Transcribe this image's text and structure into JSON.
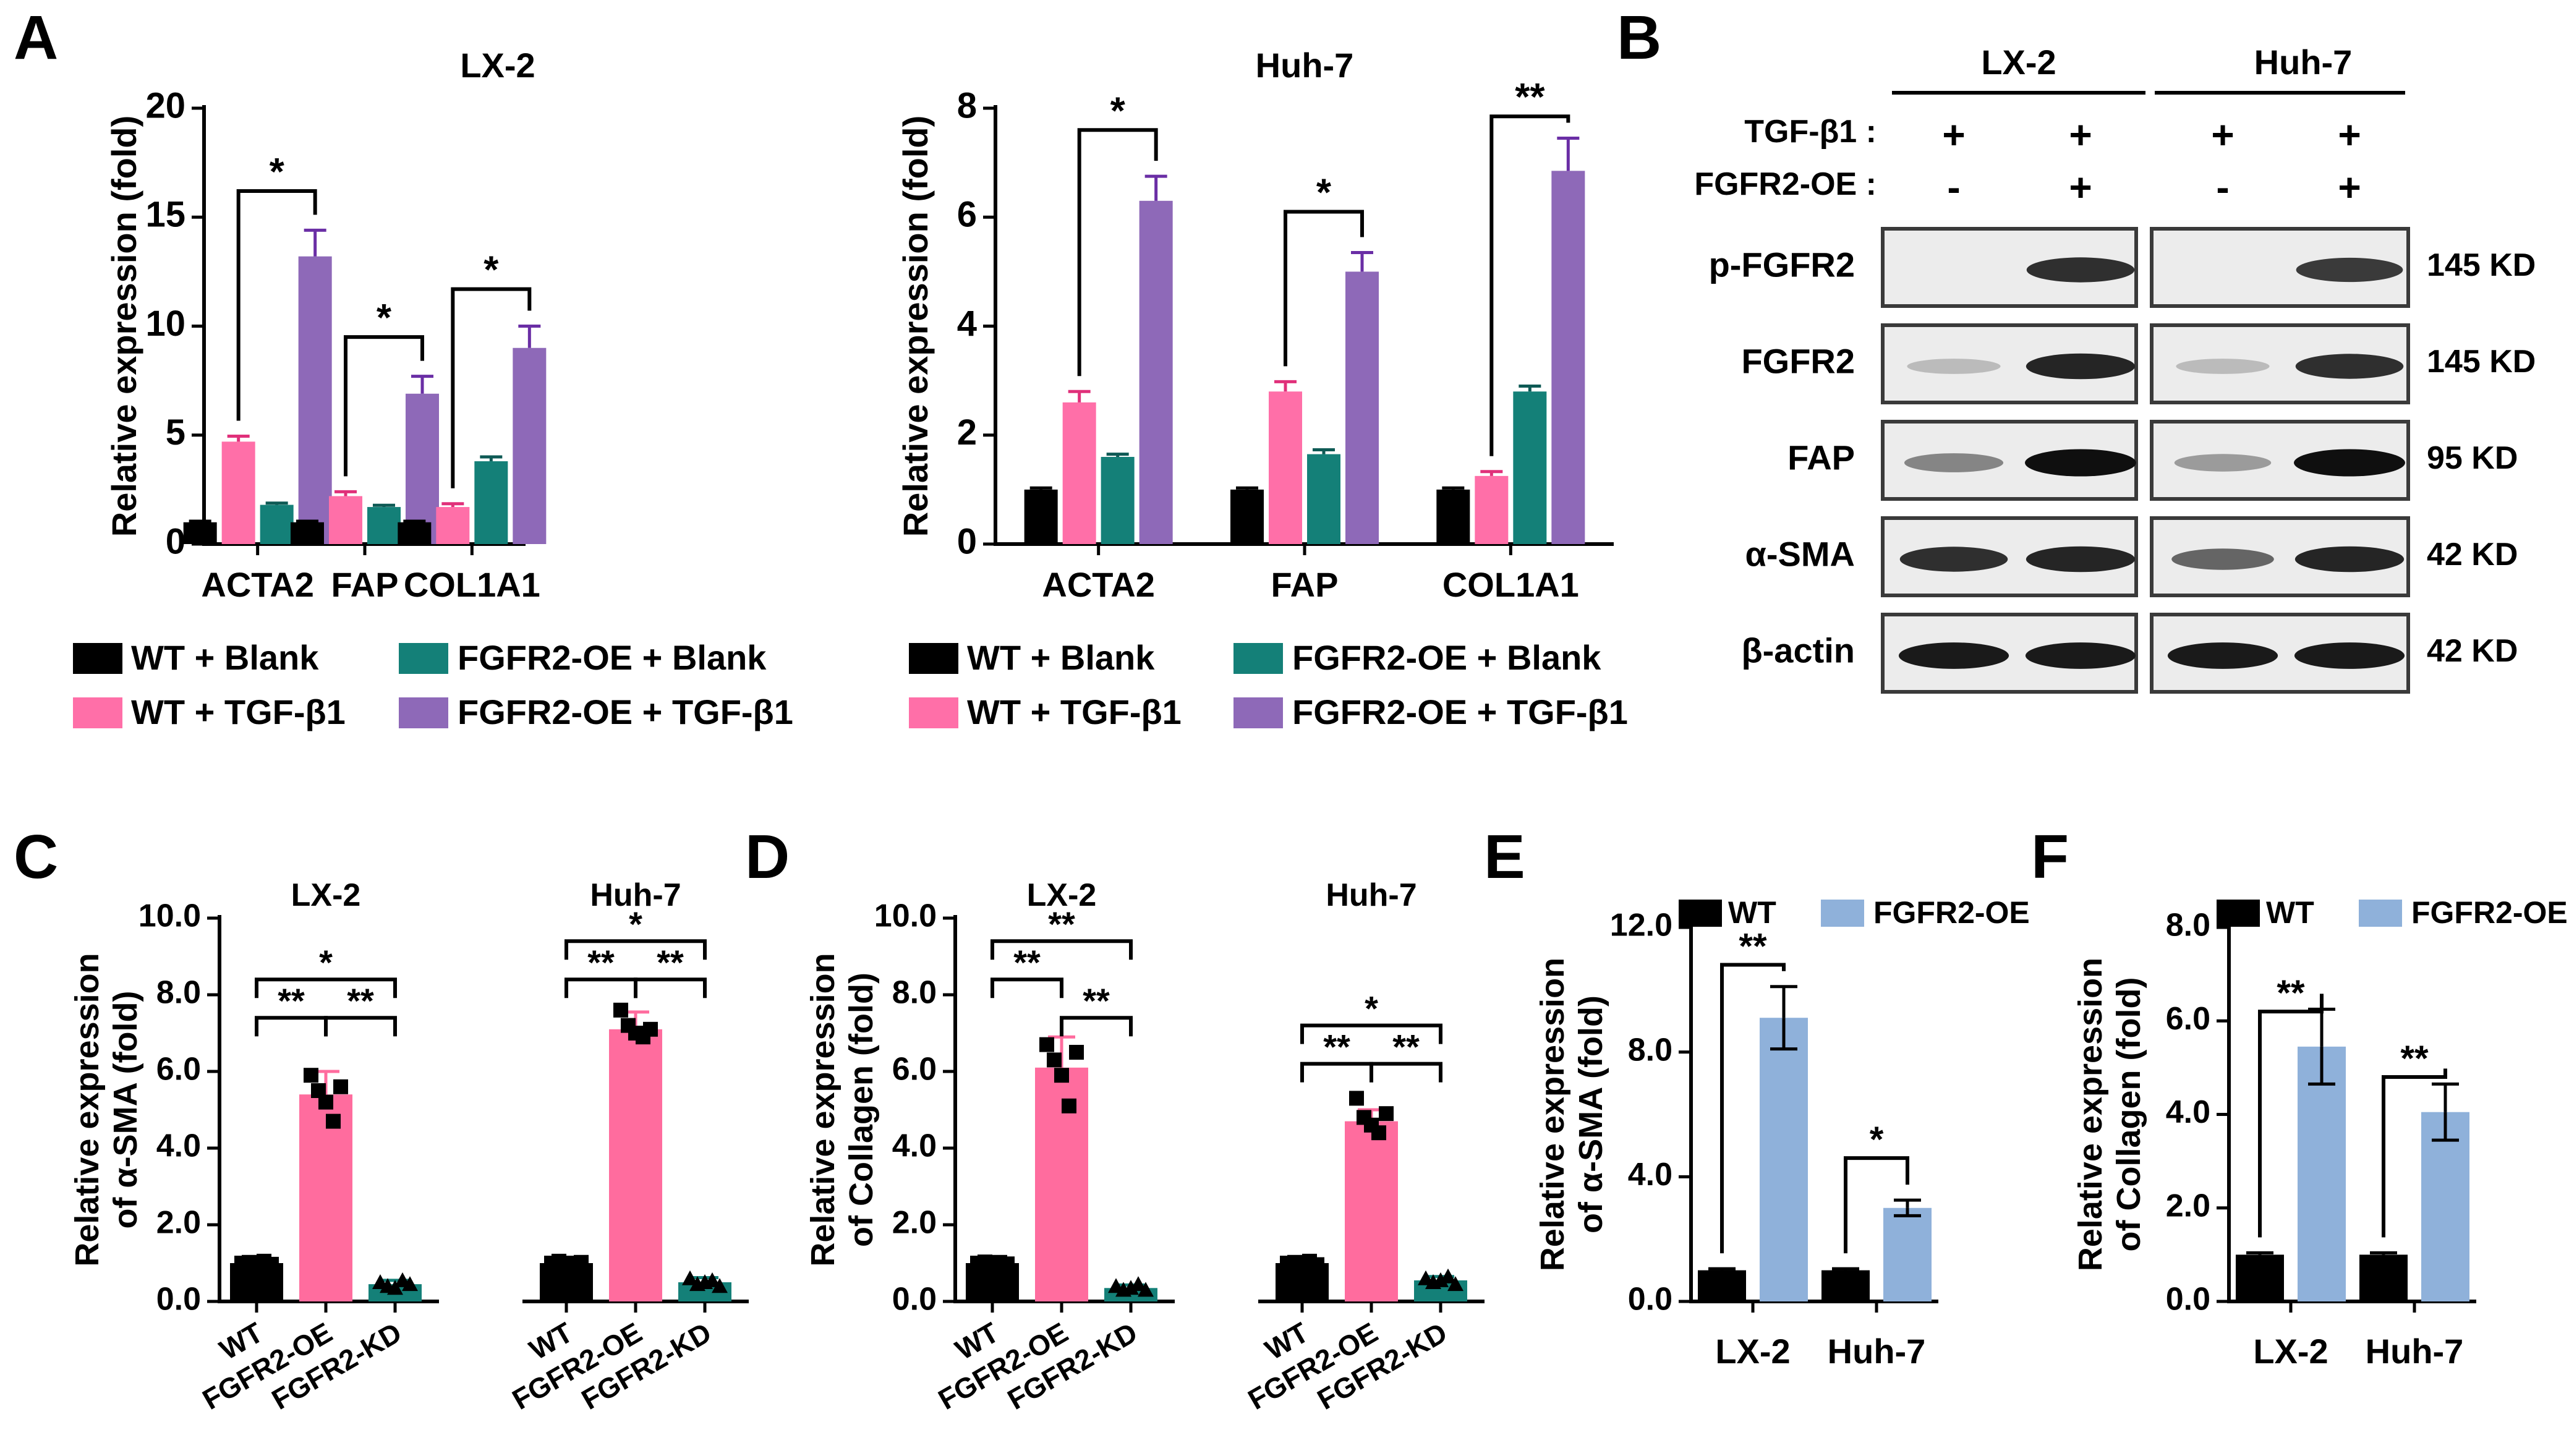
{
  "panel_labels": [
    "A",
    "B",
    "C",
    "D",
    "E",
    "F"
  ],
  "colors": {
    "wt_blank": "#000000",
    "oe_blank": "#148078",
    "wt_tgf": "#ff6fa8",
    "oe_tgf": "#8e69b8",
    "e_wt": "#000000",
    "e_oe": "#8fb1da",
    "c_oe": "#ff6c9e",
    "c_kd": "#148078",
    "err_default": "#000000"
  },
  "panelA": {
    "legend": {
      "wt_blank": "WT + Blank",
      "oe_blank": "FGFR2-OE + Blank",
      "wt_tgf": "WT + TGF-β1",
      "oe_tgf": "FGFR2-OE + TGF-β1"
    }
  },
  "panelB": {
    "cell_lines": [
      "LX-2",
      "Huh-7"
    ],
    "treatments": [
      {
        "label": "TGF-β1 :",
        "signs": [
          "+",
          "+",
          "+",
          "+"
        ]
      },
      {
        "label": "FGFR2-OE :",
        "signs": [
          "-",
          "+",
          "-",
          "+"
        ]
      }
    ],
    "rows": [
      {
        "label": "p-FGFR2",
        "size": "145 KD",
        "bands": [
          0,
          0.85,
          0,
          0.8
        ]
      },
      {
        "label": "FGFR2",
        "size": "145 KD",
        "bands": [
          0.2,
          0.9,
          0.2,
          0.85
        ]
      },
      {
        "label": "FAP",
        "size": "95 KD",
        "bands": [
          0.45,
          1.0,
          0.35,
          1.0
        ]
      },
      {
        "label": "α-SMA",
        "size": "42 KD",
        "bands": [
          0.85,
          0.9,
          0.6,
          0.9
        ]
      },
      {
        "label": "β-actin",
        "size": "42 KD",
        "bands": [
          0.95,
          0.95,
          0.95,
          0.95
        ]
      }
    ]
  },
  "chart_data": [
    {
      "id": "A-LX2",
      "type": "bar",
      "title": "LX-2",
      "ylabel": "Relative expression (fold)",
      "ylim": [
        0,
        20
      ],
      "yticks": [
        0,
        5,
        10,
        15,
        20
      ],
      "categories": [
        "ACTA2",
        "FAP",
        "COL1A1"
      ],
      "series": [
        {
          "name": "WT + Blank",
          "color": "#000000",
          "err_color": "#000000",
          "values": [
            1.0,
            1.0,
            1.0
          ],
          "errors": [
            0.05,
            0.05,
            0.05
          ]
        },
        {
          "name": "WT + TGF-β1",
          "color": "#ff6fa8",
          "err_color": "#e0307a",
          "values": [
            4.7,
            2.2,
            1.7
          ],
          "errors": [
            0.25,
            0.2,
            0.15
          ]
        },
        {
          "name": "FGFR2-OE + Blank",
          "color": "#148078",
          "err_color": "#0e5a55",
          "values": [
            1.8,
            1.7,
            3.8
          ],
          "errors": [
            0.08,
            0.08,
            0.2
          ]
        },
        {
          "name": "FGFR2-OE + TGF-β1",
          "color": "#8e69b8",
          "err_color": "#6a2ea5",
          "values": [
            13.2,
            6.9,
            9.0
          ],
          "errors": [
            1.2,
            0.8,
            1.0
          ]
        }
      ],
      "significance": [
        {
          "a": [
            0,
            1
          ],
          "b": [
            0,
            3
          ],
          "label": "*",
          "y": 16.2
        },
        {
          "a": [
            1,
            1
          ],
          "b": [
            1,
            3
          ],
          "label": "*",
          "y": 9.5
        },
        {
          "a": [
            2,
            1
          ],
          "b": [
            2,
            3
          ],
          "label": "*",
          "y": 11.7
        }
      ]
    },
    {
      "id": "A-Huh7",
      "type": "bar",
      "title": "Huh-7",
      "ylabel": "Relative expression (fold)",
      "ylim": [
        0,
        8
      ],
      "yticks": [
        0,
        2,
        4,
        6,
        8
      ],
      "categories": [
        "ACTA2",
        "FAP",
        "COL1A1"
      ],
      "series": [
        {
          "name": "WT + Blank",
          "color": "#000000",
          "err_color": "#000000",
          "values": [
            1.0,
            1.0,
            1.0
          ],
          "errors": [
            0.03,
            0.03,
            0.03
          ]
        },
        {
          "name": "WT + TGF-β1",
          "color": "#ff6fa8",
          "err_color": "#e0307a",
          "values": [
            2.6,
            2.8,
            1.25
          ],
          "errors": [
            0.2,
            0.18,
            0.08
          ]
        },
        {
          "name": "FGFR2-OE + Blank",
          "color": "#148078",
          "err_color": "#0e5a55",
          "values": [
            1.6,
            1.65,
            2.8
          ],
          "errors": [
            0.05,
            0.08,
            0.1
          ]
        },
        {
          "name": "FGFR2-OE + TGF-β1",
          "color": "#8e69b8",
          "err_color": "#6a2ea5",
          "values": [
            6.3,
            5.0,
            6.85
          ],
          "errors": [
            0.45,
            0.35,
            0.6
          ]
        }
      ],
      "significance": [
        {
          "a": [
            0,
            1
          ],
          "b": [
            0,
            3
          ],
          "label": "*",
          "y": 7.6
        },
        {
          "a": [
            1,
            1
          ],
          "b": [
            1,
            3
          ],
          "label": "*",
          "y": 6.1
        },
        {
          "a": [
            2,
            1
          ],
          "b": [
            2,
            3
          ],
          "label": "**",
          "y": 7.85
        }
      ]
    },
    {
      "id": "C",
      "type": "bar",
      "title": "",
      "group_titles": [
        "LX-2",
        "Huh-7"
      ],
      "ylabel": [
        "Relative expression",
        "of α-SMA (fold)"
      ],
      "ylim": [
        0,
        10
      ],
      "yticks": [
        "0.0",
        "2.0",
        "4.0",
        "6.0",
        "8.0",
        "10.0"
      ],
      "ytick_values": [
        0,
        2,
        4,
        6,
        8,
        10
      ],
      "categories": [
        "WT",
        "FGFR2-OE",
        "FGFR2-KD",
        "WT",
        "FGFR2-OE",
        "FGFR2-KD"
      ],
      "values": [
        1.0,
        5.4,
        0.45,
        1.0,
        7.1,
        0.5
      ],
      "errors": [
        0.05,
        0.6,
        0.1,
        0.05,
        0.45,
        0.12
      ],
      "bar_colors": [
        "#000000",
        "#ff6c9e",
        "#148078",
        "#000000",
        "#ff6c9e",
        "#148078"
      ],
      "points": [
        [
          1.0,
          1.02,
          0.98,
          1.05,
          0.97
        ],
        [
          5.9,
          5.5,
          5.2,
          4.7,
          5.6
        ],
        [
          0.5,
          0.4,
          0.35,
          0.55,
          0.45
        ],
        [
          1.0,
          1.05,
          0.95,
          1.0,
          1.02
        ],
        [
          7.6,
          7.2,
          7.0,
          6.9,
          7.1
        ],
        [
          0.6,
          0.45,
          0.5,
          0.55,
          0.4
        ]
      ],
      "significance": [
        {
          "a": 0,
          "b": 1,
          "label": "**",
          "y": 7.4
        },
        {
          "a": 1,
          "b": 2,
          "label": "**",
          "y": 7.4
        },
        {
          "a": 0,
          "b": 2,
          "label": "*",
          "y": 8.4
        },
        {
          "a": 3,
          "b": 4,
          "label": "**",
          "y": 8.4
        },
        {
          "a": 4,
          "b": 5,
          "label": "**",
          "y": 8.4
        },
        {
          "a": 3,
          "b": 5,
          "label": "*",
          "y": 9.4
        }
      ]
    },
    {
      "id": "D",
      "type": "bar",
      "title": "",
      "group_titles": [
        "LX-2",
        "Huh-7"
      ],
      "ylabel": [
        "Relative expression",
        "of Collagen (fold)"
      ],
      "ylim": [
        0,
        10
      ],
      "yticks": [
        "0.0",
        "2.0",
        "4.0",
        "6.0",
        "8.0",
        "10.0"
      ],
      "ytick_values": [
        0,
        2,
        4,
        6,
        8,
        10
      ],
      "categories": [
        "WT",
        "FGFR2-OE",
        "FGFR2-KD",
        "WT",
        "FGFR2-OE",
        "FGFR2-KD"
      ],
      "values": [
        1.0,
        6.1,
        0.35,
        1.0,
        4.7,
        0.55
      ],
      "errors": [
        0.05,
        0.8,
        0.08,
        0.05,
        0.3,
        0.1
      ],
      "bar_colors": [
        "#000000",
        "#ff6c9e",
        "#148078",
        "#000000",
        "#ff6c9e",
        "#148078"
      ],
      "points": [
        [
          1.0,
          1.03,
          0.97,
          1.02,
          0.98
        ],
        [
          6.7,
          6.3,
          5.9,
          5.1,
          6.5
        ],
        [
          0.4,
          0.3,
          0.35,
          0.45,
          0.3
        ],
        [
          1.0,
          1.02,
          0.98,
          1.05,
          0.96
        ],
        [
          5.3,
          4.8,
          4.6,
          4.4,
          4.9
        ],
        [
          0.6,
          0.5,
          0.55,
          0.65,
          0.45
        ]
      ],
      "significance": [
        {
          "a": 0,
          "b": 1,
          "label": "**",
          "y": 8.4
        },
        {
          "a": 1,
          "b": 2,
          "label": "**",
          "y": 7.4
        },
        {
          "a": 0,
          "b": 2,
          "label": "**",
          "y": 9.4
        },
        {
          "a": 3,
          "b": 4,
          "label": "**",
          "y": 6.2
        },
        {
          "a": 4,
          "b": 5,
          "label": "**",
          "y": 6.2
        },
        {
          "a": 3,
          "b": 5,
          "label": "*",
          "y": 7.2
        }
      ]
    },
    {
      "id": "E",
      "type": "bar",
      "title": "",
      "ylabel": [
        "Relative expression",
        "of α-SMA (fold)"
      ],
      "ylim": [
        0,
        12
      ],
      "yticks": [
        "0.0",
        "4.0",
        "8.0",
        "12.0"
      ],
      "ytick_values": [
        0,
        4,
        8,
        12
      ],
      "categories": [
        "LX-2",
        "Huh-7"
      ],
      "legend": [
        "WT",
        "FGFR2-OE"
      ],
      "series": [
        {
          "name": "WT",
          "color": "#000000",
          "values": [
            1.0,
            1.0
          ],
          "errors": [
            0.05,
            0.05
          ]
        },
        {
          "name": "FGFR2-OE",
          "color": "#8fb1da",
          "values": [
            9.1,
            3.0
          ],
          "errors": [
            1.0,
            0.25
          ]
        }
      ],
      "significance": [
        {
          "group": 0,
          "label": "**",
          "y": 10.8
        },
        {
          "group": 1,
          "label": "*",
          "y": 4.6
        }
      ]
    },
    {
      "id": "F",
      "type": "bar",
      "title": "",
      "ylabel": [
        "Relative expression",
        "of Collagen (fold)"
      ],
      "ylim": [
        0,
        8
      ],
      "yticks": [
        "0.0",
        "2.0",
        "4.0",
        "6.0",
        "8.0"
      ],
      "ytick_values": [
        0,
        2,
        4,
        6,
        8
      ],
      "categories": [
        "LX-2",
        "Huh-7"
      ],
      "legend": [
        "WT",
        "FGFR2-OE"
      ],
      "series": [
        {
          "name": "WT",
          "color": "#000000",
          "values": [
            1.0,
            1.0
          ],
          "errors": [
            0.04,
            0.04
          ]
        },
        {
          "name": "FGFR2-OE",
          "color": "#8fb1da",
          "values": [
            5.45,
            4.05
          ],
          "errors": [
            0.8,
            0.6
          ]
        }
      ],
      "significance": [
        {
          "group": 0,
          "label": "**",
          "y": 6.2
        },
        {
          "group": 1,
          "label": "**",
          "y": 4.8
        }
      ]
    }
  ]
}
